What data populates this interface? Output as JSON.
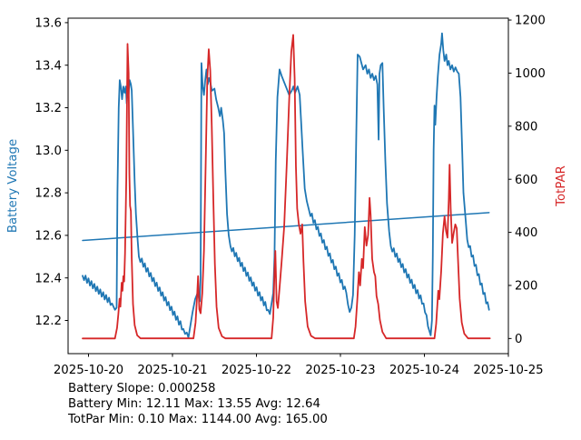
{
  "chart_data": {
    "type": "line",
    "title": "",
    "grid": false,
    "legend": false,
    "x_axis": {
      "unit": "days since 2025-10-20 00:00",
      "xlim": [
        -0.243,
        5.0
      ],
      "tick_values": [
        0,
        1,
        2,
        3,
        4,
        5
      ],
      "tick_labels": [
        "2025-10-20",
        "2025-10-21",
        "2025-10-22",
        "2025-10-23",
        "2025-10-24",
        "2025-10-25"
      ]
    },
    "y_axis_left": {
      "label": "Battery Voltage",
      "color": "#1f77b4",
      "ylim": [
        12.044,
        13.621
      ],
      "tick_values": [
        12.2,
        12.4,
        12.6,
        12.8,
        13.0,
        13.2,
        13.4,
        13.6
      ],
      "tick_labels": [
        "12.2",
        "12.4",
        "12.6",
        "12.8",
        "13.0",
        "13.2",
        "13.4",
        "13.6"
      ]
    },
    "y_axis_right": {
      "label": "TotPAR",
      "color": "#d62728",
      "ylim": [
        -57,
        1207
      ],
      "tick_values": [
        0,
        200,
        400,
        600,
        800,
        1000,
        1200
      ],
      "tick_labels": [
        "0",
        "200",
        "400",
        "600",
        "800",
        "1000",
        "1200"
      ]
    },
    "series": [
      {
        "name": "battery_voltage",
        "axis": "left",
        "color": "#1f77b4",
        "width": 1.8,
        "points": [
          [
            -0.07,
            12.41
          ],
          {
            "to": [
              0.28,
              12.28
            ],
            "ripple": 0.028,
            "period": 0.035
          },
          [
            0.315,
            12.25
          ],
          [
            0.335,
            12.26
          ],
          [
            0.345,
            12.8
          ],
          [
            0.36,
            13.2
          ],
          [
            0.372,
            13.33
          ],
          [
            0.385,
            13.3
          ],
          [
            0.4,
            13.24
          ],
          [
            0.415,
            13.3
          ],
          [
            0.43,
            13.27
          ],
          [
            0.445,
            13.3
          ],
          [
            0.455,
            13.22
          ],
          [
            0.465,
            13.28
          ],
          [
            0.475,
            13.25
          ],
          [
            0.49,
            13.33
          ],
          [
            0.505,
            13.31
          ],
          [
            0.515,
            13.28
          ],
          [
            0.53,
            13.1
          ],
          [
            0.55,
            12.85
          ],
          [
            0.565,
            12.7
          ],
          [
            0.585,
            12.58
          ],
          [
            0.6,
            12.5
          ],
          {
            "to": [
              1.13,
              12.16
            ],
            "ripple": 0.028,
            "period": 0.035
          },
          {
            "to": [
              1.19,
              12.12
            ],
            "ripple": 0.02,
            "period": 0.035
          },
          [
            1.215,
            12.18
          ],
          [
            1.24,
            12.24
          ],
          [
            1.27,
            12.3
          ],
          [
            1.3,
            12.33
          ],
          [
            1.325,
            12.29
          ],
          [
            1.335,
            12.4
          ],
          [
            1.345,
            13.41
          ],
          [
            1.36,
            13.3
          ],
          [
            1.375,
            13.26
          ],
          [
            1.39,
            13.33
          ],
          [
            1.405,
            13.38
          ],
          [
            1.42,
            13.31
          ],
          [
            1.435,
            13.34
          ],
          [
            1.45,
            13.32
          ],
          [
            1.47,
            13.28
          ],
          [
            1.5,
            13.29
          ],
          [
            1.52,
            13.24
          ],
          [
            1.545,
            13.2
          ],
          [
            1.565,
            13.16
          ],
          [
            1.58,
            13.2
          ],
          [
            1.6,
            13.14
          ],
          [
            1.615,
            13.08
          ],
          [
            1.63,
            12.9
          ],
          [
            1.65,
            12.7
          ],
          [
            1.67,
            12.6
          ],
          [
            1.69,
            12.55
          ],
          {
            "to": [
              2.14,
              12.25
            ],
            "ripple": 0.028,
            "period": 0.035
          },
          [
            2.16,
            12.23
          ],
          [
            2.18,
            12.28
          ],
          [
            2.2,
            12.33
          ],
          [
            2.215,
            12.5
          ],
          [
            2.23,
            12.95
          ],
          [
            2.25,
            13.25
          ],
          [
            2.275,
            13.38
          ],
          [
            2.3,
            13.35
          ],
          [
            2.33,
            13.32
          ],
          [
            2.36,
            13.29
          ],
          [
            2.39,
            13.26
          ],
          [
            2.42,
            13.28
          ],
          [
            2.44,
            13.3
          ],
          [
            2.46,
            13.27
          ],
          [
            2.49,
            13.3
          ],
          [
            2.515,
            13.26
          ],
          [
            2.53,
            13.15
          ],
          [
            2.55,
            13.0
          ],
          [
            2.575,
            12.82
          ],
          [
            2.6,
            12.76
          ],
          [
            2.625,
            12.72
          ],
          {
            "to": [
              3.07,
              12.33
            ],
            "ripple": 0.028,
            "period": 0.035
          },
          {
            "to": [
              3.11,
              12.24
            ],
            "ripple": 0.02,
            "period": 0.035
          },
          [
            3.13,
            12.26
          ],
          [
            3.15,
            12.32
          ],
          [
            3.17,
            12.6
          ],
          [
            3.19,
            13.1
          ],
          [
            3.205,
            13.45
          ],
          [
            3.23,
            13.44
          ],
          [
            3.25,
            13.41
          ],
          [
            3.27,
            13.38
          ],
          [
            3.3,
            13.4
          ],
          [
            3.32,
            13.36
          ],
          [
            3.34,
            13.38
          ],
          [
            3.36,
            13.34
          ],
          [
            3.38,
            13.36
          ],
          [
            3.4,
            13.33
          ],
          [
            3.42,
            13.35
          ],
          [
            3.44,
            13.31
          ],
          [
            3.455,
            13.05
          ],
          [
            3.465,
            13.36
          ],
          [
            3.48,
            13.4
          ],
          [
            3.5,
            13.41
          ],
          [
            3.515,
            13.2
          ],
          [
            3.535,
            12.95
          ],
          [
            3.555,
            12.75
          ],
          [
            3.58,
            12.62
          ],
          [
            3.6,
            12.55
          ],
          {
            "to": [
              3.99,
              12.28
            ],
            "ripple": 0.028,
            "period": 0.035
          },
          {
            "to": [
              4.06,
              12.15
            ],
            "ripple": 0.02,
            "period": 0.035
          },
          [
            4.075,
            12.13
          ],
          [
            4.09,
            12.2
          ],
          [
            4.1,
            12.5
          ],
          [
            4.11,
            13.0
          ],
          [
            4.12,
            13.21
          ],
          [
            4.13,
            13.12
          ],
          [
            4.145,
            13.25
          ],
          [
            4.16,
            13.35
          ],
          [
            4.18,
            13.45
          ],
          [
            4.2,
            13.5
          ],
          [
            4.21,
            13.55
          ],
          [
            4.225,
            13.47
          ],
          [
            4.24,
            13.42
          ],
          [
            4.26,
            13.45
          ],
          [
            4.275,
            13.4
          ],
          [
            4.29,
            13.42
          ],
          [
            4.31,
            13.38
          ],
          [
            4.33,
            13.4
          ],
          [
            4.35,
            13.37
          ],
          [
            4.37,
            13.39
          ],
          [
            4.39,
            13.37
          ],
          [
            4.41,
            13.36
          ],
          [
            4.43,
            13.25
          ],
          [
            4.45,
            13.0
          ],
          [
            4.465,
            12.8
          ],
          [
            4.49,
            12.68
          ],
          [
            4.51,
            12.58
          ],
          {
            "to": [
              4.77,
              12.25
            ],
            "ripple": 0.028,
            "period": 0.035
          }
        ]
      },
      {
        "name": "battery_trend",
        "axis": "left",
        "color": "#1f77b4",
        "width": 1.5,
        "points": [
          [
            -0.07,
            12.576
          ],
          [
            4.77,
            12.707
          ]
        ]
      },
      {
        "name": "totpar",
        "axis": "right",
        "color": "#d62728",
        "width": 1.8,
        "points": [
          [
            -0.07,
            0.1
          ],
          [
            0.315,
            0.1
          ],
          [
            0.34,
            40
          ],
          [
            0.355,
            90
          ],
          [
            0.37,
            150
          ],
          [
            0.38,
            120
          ],
          [
            0.395,
            210
          ],
          [
            0.405,
            180
          ],
          [
            0.415,
            235
          ],
          [
            0.425,
            215
          ],
          [
            0.435,
            320
          ],
          [
            0.45,
            600
          ],
          [
            0.465,
            1110
          ],
          [
            0.478,
            1000
          ],
          [
            0.487,
            620
          ],
          [
            0.495,
            500
          ],
          [
            0.505,
            480
          ],
          [
            0.515,
            300
          ],
          [
            0.53,
            130
          ],
          [
            0.55,
            50
          ],
          [
            0.58,
            12
          ],
          [
            0.62,
            0.5
          ],
          [
            1.25,
            0.5
          ],
          [
            1.275,
            60
          ],
          [
            1.295,
            170
          ],
          [
            1.305,
            235
          ],
          [
            1.32,
            110
          ],
          [
            1.335,
            95
          ],
          [
            1.355,
            170
          ],
          [
            1.375,
            330
          ],
          [
            1.395,
            650
          ],
          [
            1.415,
            980
          ],
          [
            1.432,
            1090
          ],
          [
            1.45,
            1010
          ],
          [
            1.468,
            800
          ],
          [
            1.487,
            520
          ],
          [
            1.505,
            280
          ],
          [
            1.525,
            120
          ],
          [
            1.55,
            40
          ],
          [
            1.59,
            8
          ],
          [
            1.63,
            0.5
          ],
          [
            2.18,
            0.5
          ],
          [
            2.2,
            80
          ],
          [
            2.215,
            255
          ],
          [
            2.225,
            330
          ],
          [
            2.24,
            140
          ],
          [
            2.255,
            115
          ],
          [
            2.275,
            190
          ],
          [
            2.3,
            290
          ],
          [
            2.33,
            420
          ],
          [
            2.36,
            650
          ],
          [
            2.39,
            900
          ],
          [
            2.415,
            1080
          ],
          [
            2.438,
            1144
          ],
          [
            2.455,
            980
          ],
          [
            2.47,
            650
          ],
          [
            2.485,
            490
          ],
          [
            2.505,
            430
          ],
          [
            2.525,
            395
          ],
          [
            2.545,
            430
          ],
          [
            2.56,
            290
          ],
          [
            2.58,
            140
          ],
          [
            2.61,
            45
          ],
          [
            2.65,
            10
          ],
          [
            2.7,
            0.5
          ],
          [
            3.16,
            0.5
          ],
          [
            3.18,
            45
          ],
          [
            3.2,
            140
          ],
          [
            3.22,
            250
          ],
          [
            3.235,
            200
          ],
          [
            3.255,
            300
          ],
          [
            3.27,
            265
          ],
          [
            3.29,
            420
          ],
          [
            3.31,
            350
          ],
          [
            3.33,
            390
          ],
          [
            3.347,
            530
          ],
          [
            3.36,
            465
          ],
          [
            3.378,
            300
          ],
          [
            3.4,
            250
          ],
          [
            3.415,
            235
          ],
          [
            3.43,
            160
          ],
          [
            3.45,
            130
          ],
          [
            3.47,
            70
          ],
          [
            3.5,
            25
          ],
          [
            3.545,
            0.5
          ],
          [
            4.12,
            0.5
          ],
          [
            4.14,
            55
          ],
          [
            4.155,
            130
          ],
          [
            4.165,
            180
          ],
          [
            4.178,
            148
          ],
          [
            4.2,
            255
          ],
          [
            4.22,
            395
          ],
          [
            4.24,
            460
          ],
          [
            4.258,
            405
          ],
          [
            4.275,
            380
          ],
          [
            4.29,
            520
          ],
          [
            4.3,
            655
          ],
          [
            4.313,
            490
          ],
          [
            4.33,
            360
          ],
          [
            4.35,
            400
          ],
          [
            4.368,
            430
          ],
          [
            4.385,
            415
          ],
          [
            4.4,
            300
          ],
          [
            4.42,
            150
          ],
          [
            4.445,
            60
          ],
          [
            4.475,
            18
          ],
          [
            4.52,
            0.5
          ],
          [
            4.78,
            0.5
          ]
        ]
      }
    ]
  },
  "stats": {
    "battery_slope": "Battery Slope: 0.000258",
    "battery_minmax": "Battery Min: 12.11 Max: 13.55 Avg: 12.64",
    "totpar_minmax": "TotPar Min: 0.10 Max: 1144.00 Avg: 165.00"
  }
}
